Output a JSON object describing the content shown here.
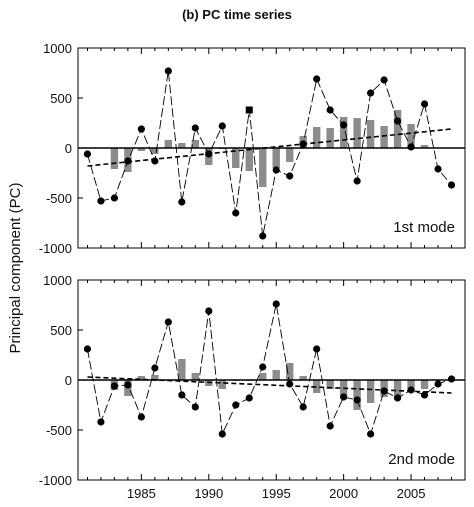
{
  "title": "(b) PC time series",
  "ylabel": "Principal component (PC)",
  "chart_data": [
    {
      "type": "bar+line",
      "panel_label": "1st mode",
      "xlim": [
        1980.3,
        2009
      ],
      "ylim": [
        -1000,
        1000
      ],
      "x_ticks": [
        1985,
        1990,
        1995,
        2000,
        2005
      ],
      "y_ticks": [
        -1000,
        -500,
        0,
        500,
        1000
      ],
      "grid": false,
      "years": [
        1981,
        1982,
        1983,
        1984,
        1985,
        1986,
        1987,
        1988,
        1989,
        1990,
        1991,
        1992,
        1993,
        1994,
        1995,
        1996,
        1997,
        1998,
        1999,
        2000,
        2001,
        2002,
        2003,
        2004,
        2005,
        2006,
        2007,
        2008
      ],
      "pc": [
        -60,
        -530,
        -500,
        -130,
        190,
        -130,
        770,
        -540,
        200,
        -60,
        220,
        -650,
        380,
        -880,
        -220,
        -280,
        40,
        690,
        380,
        230,
        -330,
        550,
        680,
        270,
        10,
        440,
        -210,
        -370
      ],
      "bars": [
        0,
        0,
        -210,
        -240,
        -30,
        -60,
        80,
        50,
        80,
        -170,
        -10,
        -200,
        -230,
        -390,
        -200,
        -140,
        120,
        210,
        200,
        310,
        300,
        280,
        220,
        380,
        240,
        30,
        0,
        0
      ],
      "trend": {
        "x": [
          1981,
          2008
        ],
        "y": [
          -180,
          190
        ]
      },
      "zero_line": 0
    },
    {
      "type": "bar+line",
      "panel_label": "2nd mode",
      "xlim": [
        1980.3,
        2009
      ],
      "ylim": [
        -1000,
        1000
      ],
      "x_ticks": [
        1985,
        1990,
        1995,
        2000,
        2005
      ],
      "x_tick_labels": [
        "1985",
        "1990",
        "1995",
        "2000",
        "2005"
      ],
      "y_ticks": [
        -1000,
        -500,
        0,
        500,
        1000
      ],
      "grid": false,
      "years": [
        1981,
        1982,
        1983,
        1984,
        1985,
        1986,
        1987,
        1988,
        1989,
        1990,
        1991,
        1992,
        1993,
        1994,
        1995,
        1996,
        1997,
        1998,
        1999,
        2000,
        2001,
        2002,
        2003,
        2004,
        2005,
        2006,
        2007,
        2008
      ],
      "pc": [
        310,
        -420,
        -60,
        -50,
        -370,
        120,
        580,
        -150,
        -270,
        690,
        -540,
        -250,
        -180,
        130,
        760,
        -40,
        -270,
        310,
        -460,
        -170,
        -200,
        -540,
        -110,
        -180,
        -100,
        -150,
        -40,
        10
      ],
      "bars": [
        0,
        0,
        -100,
        -160,
        40,
        50,
        0,
        210,
        70,
        -60,
        -90,
        -10,
        -10,
        70,
        100,
        170,
        40,
        -130,
        -90,
        -160,
        -300,
        -230,
        -170,
        -180,
        -120,
        -90,
        0,
        0
      ],
      "trend": {
        "x": [
          1981,
          2008
        ],
        "y": [
          30,
          -130
        ]
      },
      "zero_line": 0
    }
  ]
}
